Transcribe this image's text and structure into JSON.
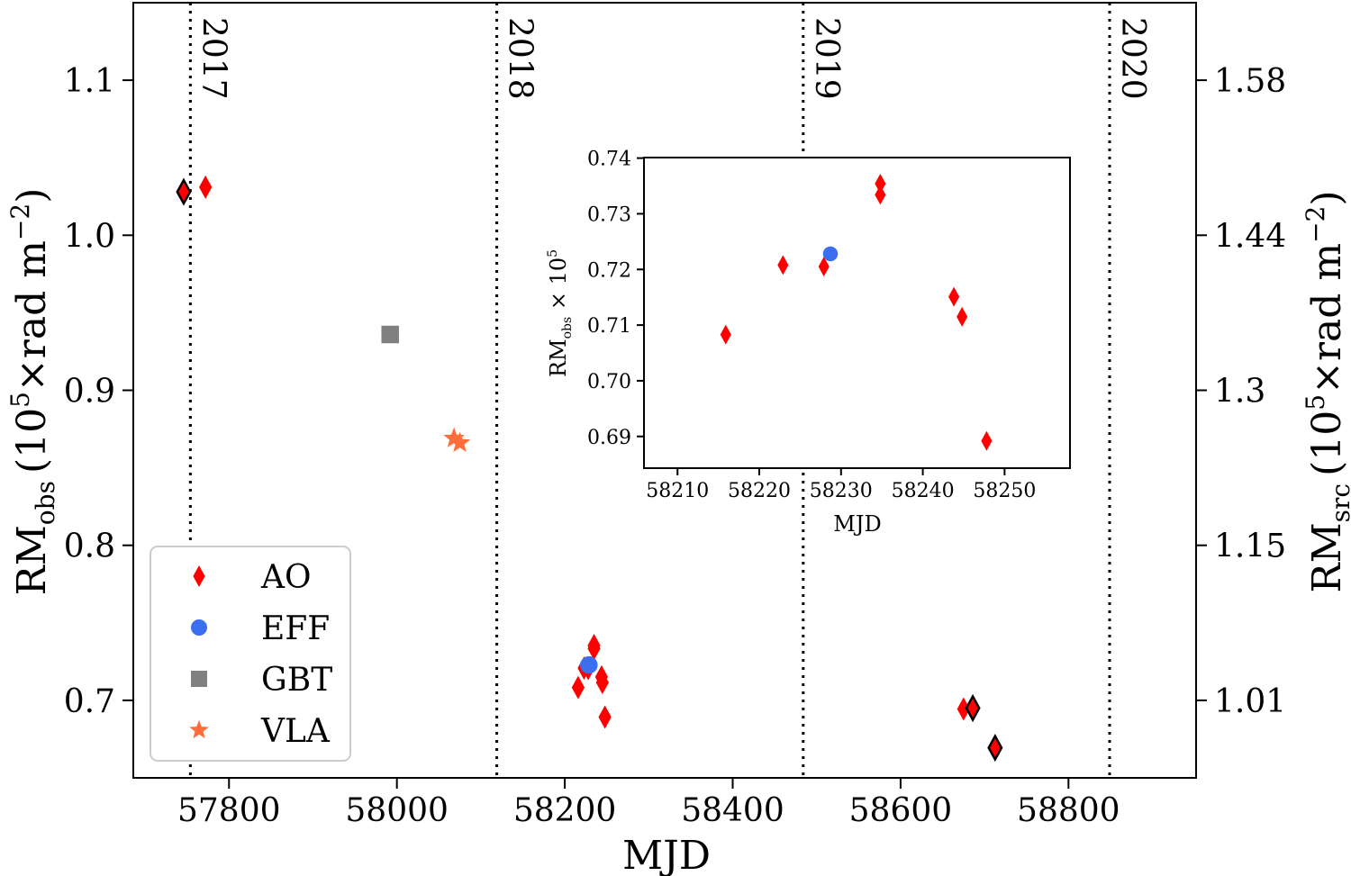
{
  "chart_data": [
    {
      "type": "scatter",
      "xlabel": "MJD",
      "ylabel": {
        "main": "RM",
        "sub": "obs",
        "open": "(10",
        "sup": "5",
        "mid": "×rad m",
        "sup2": "−2",
        "close": ")"
      },
      "ylabel_right": {
        "main": "RM",
        "sub": "src",
        "open": "(10",
        "sup": "5",
        "mid": "×rad m",
        "sup2": "−2",
        "close": ")"
      },
      "xlim": [
        57686,
        58952
      ],
      "ylim": [
        0.65,
        1.15
      ],
      "xticks": [
        57800,
        58000,
        58200,
        58400,
        58600,
        58800
      ],
      "yticks": [
        0.7,
        0.8,
        0.9,
        1.0,
        1.1
      ],
      "ytick_labels": [
        "0.7",
        "0.8",
        "0.9",
        "1.0",
        "1.1"
      ],
      "yticks_right": [
        {
          "at": 0.7,
          "label": "1.01"
        },
        {
          "at": 0.8,
          "label": "1.15"
        },
        {
          "at": 0.9,
          "label": "1.3"
        },
        {
          "at": 1.0,
          "label": "1.44"
        },
        {
          "at": 1.1,
          "label": "1.58"
        }
      ],
      "grid": false,
      "legend_placement": "lower-left",
      "year_lines": [
        {
          "mjd": 57754,
          "label": "2017"
        },
        {
          "mjd": 58119,
          "label": "2018"
        },
        {
          "mjd": 58484,
          "label": "2019"
        },
        {
          "mjd": 58849,
          "label": "2020"
        }
      ],
      "series": [
        {
          "name": "AO",
          "marker": "thin-diamond",
          "color": "#ff0000",
          "points": [
            {
              "x": 57746,
              "y": 1.028,
              "edge": true
            },
            {
              "x": 57772,
              "y": 1.031
            },
            {
              "x": 58215.9,
              "y": 0.7083
            },
            {
              "x": 58222.9,
              "y": 0.7208
            },
            {
              "x": 58227.9,
              "y": 0.7205
            },
            {
              "x": 58234.8,
              "y": 0.7354
            },
            {
              "x": 58234.8,
              "y": 0.7334
            },
            {
              "x": 58243.8,
              "y": 0.7151
            },
            {
              "x": 58244.8,
              "y": 0.7115
            },
            {
              "x": 58247.8,
              "y": 0.6892
            },
            {
              "x": 58675,
              "y": 0.6944
            },
            {
              "x": 58686,
              "y": 0.695,
              "edge": true
            },
            {
              "x": 58712.6,
              "y": 0.6694,
              "edge": true
            }
          ]
        },
        {
          "name": "EFF",
          "marker": "circle",
          "color": "#3b6ff0",
          "points": [
            {
              "x": 58228.7,
              "y": 0.7228
            }
          ]
        },
        {
          "name": "GBT",
          "marker": "square",
          "color": "#808080",
          "points": [
            {
              "x": 57992,
              "y": 0.936
            }
          ]
        },
        {
          "name": "VLA",
          "marker": "star",
          "color": "#ff6e3a",
          "points": [
            {
              "x": 58068,
              "y": 0.869
            },
            {
              "x": 58075,
              "y": 0.866
            }
          ]
        }
      ]
    },
    {
      "type": "scatter",
      "xlabel": "MJD",
      "ylabel": {
        "main": "RM",
        "sub": "obs",
        "mid": " × 10",
        "sup": "5"
      },
      "xlim": [
        58205.9,
        58258.0
      ],
      "ylim": [
        0.6843,
        0.7401
      ],
      "xticks": [
        58210,
        58220,
        58230,
        58240,
        58250
      ],
      "yticks": [
        0.69,
        0.7,
        0.71,
        0.72,
        0.73,
        0.74
      ],
      "ytick_labels": [
        "0.69",
        "0.70",
        "0.71",
        "0.72",
        "0.73",
        "0.74"
      ],
      "series": [
        {
          "name": "AO",
          "marker": "thin-diamond",
          "color": "#ff0000",
          "points": [
            {
              "x": 58215.9,
              "y": 0.7083
            },
            {
              "x": 58222.9,
              "y": 0.7208
            },
            {
              "x": 58227.9,
              "y": 0.7205
            },
            {
              "x": 58234.8,
              "y": 0.7354
            },
            {
              "x": 58234.8,
              "y": 0.7334
            },
            {
              "x": 58243.8,
              "y": 0.7151
            },
            {
              "x": 58244.8,
              "y": 0.7115
            },
            {
              "x": 58247.8,
              "y": 0.6892
            }
          ]
        },
        {
          "name": "EFF",
          "marker": "circle",
          "color": "#3b6ff0",
          "points": [
            {
              "x": 58228.7,
              "y": 0.7228
            }
          ]
        }
      ]
    }
  ]
}
